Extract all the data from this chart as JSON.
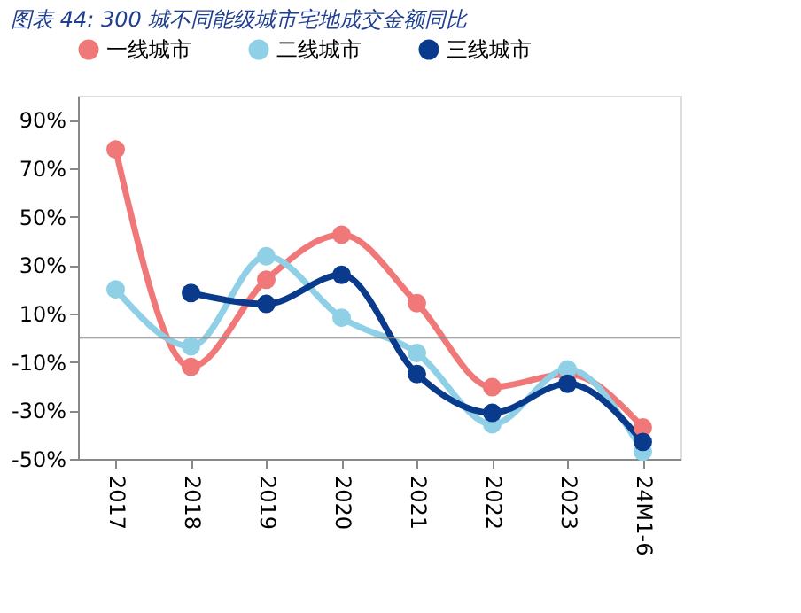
{
  "chart_data": {
    "type": "line",
    "title": "图表 44:  300 城不同能级城市宅地成交金额同比",
    "categories": [
      "2017",
      "2018",
      "2019",
      "2020",
      "2021",
      "2022",
      "2023",
      "24M1-6"
    ],
    "series": [
      {
        "name": "一线城市",
        "color": "#f07878",
        "values": [
          77.8,
          -12,
          24,
          42.6,
          14.3,
          -20.4,
          -15,
          -37
        ]
      },
      {
        "name": "二线城市",
        "color": "#8fd0e6",
        "values": [
          20,
          -3.5,
          33.7,
          8.3,
          -6.3,
          -35.7,
          -13,
          -47
        ]
      },
      {
        "name": "三线城市",
        "color": "#0a3a8c",
        "values": [
          null,
          18.5,
          14,
          26,
          -15,
          -31,
          -19,
          -43
        ]
      }
    ],
    "ylim": [
      -50,
      100
    ],
    "yticks": [
      {
        "value": -50,
        "label": "-50%"
      },
      {
        "value": -30,
        "label": "-30%"
      },
      {
        "value": -10,
        "label": "-10%"
      },
      {
        "value": 10,
        "label": "10%"
      },
      {
        "value": 30,
        "label": "30%"
      },
      {
        "value": 50,
        "label": "50%"
      },
      {
        "value": 70,
        "label": "70%"
      },
      {
        "value": 90,
        "label": "90%"
      }
    ],
    "grid": false,
    "legend": "top",
    "marker": "circle",
    "line_style": "solid"
  }
}
